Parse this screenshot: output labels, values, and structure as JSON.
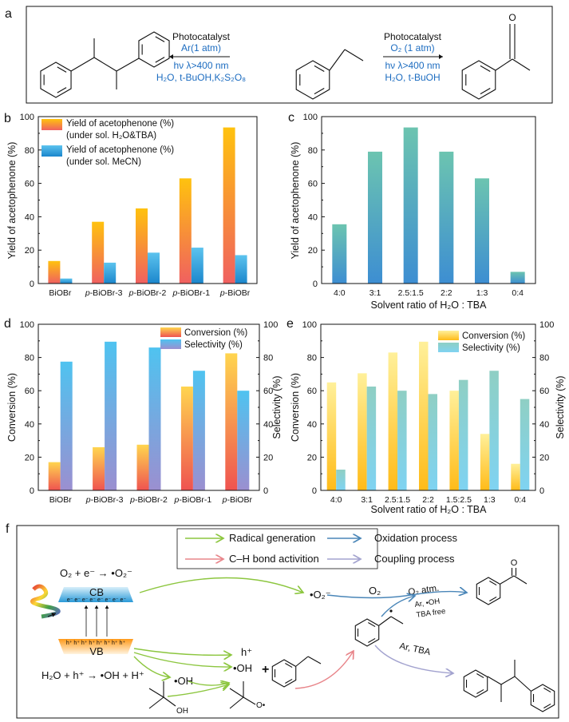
{
  "panel_labels": {
    "a": "a",
    "b": "b",
    "c": "c",
    "d": "d",
    "e": "e",
    "f": "f"
  },
  "scheme_a": {
    "left_conditions": [
      "Photocatalyst",
      "Ar(1 atm)",
      "hν λ>400 nm",
      "H₂O, t-BuOH,K₂S₂O₈"
    ],
    "right_conditions": [
      "Photocatalyst",
      "O₂ (1 atm)",
      "hν λ>400 nm",
      "H₂O, t-BuOH"
    ],
    "carbonyl_oxygen": "O",
    "condition_color": "#1c6cc0"
  },
  "chart_data": [
    {
      "panel": "b",
      "type": "bar",
      "categories": [
        "BiOBr",
        "p-BiOBr-3",
        "p-BiOBr-2",
        "p-BiOBr-1",
        "p-BiOBr"
      ],
      "series": [
        {
          "name": "Yield of acetophenone (%)",
          "name_line2": "(under sol. H₂O&TBA)",
          "values": [
            13.5,
            37,
            45,
            63,
            93.5
          ],
          "colors": [
            "#ffc20e",
            "#f06060"
          ]
        },
        {
          "name": "Yield of acetophenone (%)",
          "name_line2": "(under sol. MeCN)",
          "values": [
            3,
            12.5,
            18.5,
            21.5,
            17
          ],
          "colors": [
            "#5cc3ee",
            "#1b86cc"
          ]
        }
      ],
      "ylabel": "Yield of acetophenone (%)",
      "xlabel": "",
      "ylim": [
        0,
        100
      ],
      "yticks": [
        0,
        20,
        40,
        60,
        80,
        100
      ],
      "legend": "top-left",
      "grid": false
    },
    {
      "panel": "c",
      "type": "bar",
      "categories": [
        "4:0",
        "3:1",
        "2.5:1.5",
        "2:2",
        "1:3",
        "0:4"
      ],
      "series": [
        {
          "values": [
            35.5,
            79,
            93.5,
            79,
            63,
            7
          ],
          "colors": [
            "#6cc4b0",
            "#3d8ed2"
          ]
        }
      ],
      "ylabel": "Yield of acetophenone (%)",
      "xlabel": "Solvent ratio of H₂O : TBA",
      "ylim": [
        0,
        100
      ],
      "yticks": [
        0,
        20,
        40,
        60,
        80,
        100
      ],
      "grid": false
    },
    {
      "panel": "d",
      "type": "bar",
      "categories": [
        "BiOBr",
        "p-BiOBr-3",
        "p-BiOBr-2",
        "p-BiOBr-1",
        "p-BiOBr"
      ],
      "series": [
        {
          "name": "Conversion (%)",
          "axis": "left",
          "values": [
            17,
            26,
            27.5,
            62.5,
            82.5
          ],
          "colors": [
            "#ffd54f",
            "#ef5350"
          ]
        },
        {
          "name": "Selectivity (%)",
          "axis": "right",
          "values": [
            77.5,
            89.5,
            86,
            72,
            60
          ],
          "colors": [
            "#4fc3f0",
            "#9b8fd0"
          ]
        }
      ],
      "ylabel": "Conversion (%)",
      "y2label": "Selectivity (%)",
      "xlabel": "",
      "ylim": [
        0,
        100
      ],
      "y2lim": [
        0,
        100
      ],
      "yticks": [
        0,
        20,
        40,
        60,
        80,
        100
      ],
      "legend": "top-right",
      "grid": false
    },
    {
      "panel": "e",
      "type": "bar",
      "categories": [
        "4:0",
        "3:1",
        "2.5:1.5",
        "2:2",
        "1.5:2.5",
        "1:3",
        "0:4"
      ],
      "series": [
        {
          "name": "Conversion (%)",
          "axis": "left",
          "values": [
            65,
            70.5,
            83,
            89.5,
            60,
            34,
            16
          ],
          "colors": [
            "#fff09a",
            "#ffbb18"
          ]
        },
        {
          "name": "Selectivity (%)",
          "axis": "right",
          "values": [
            12.5,
            62.5,
            60,
            58,
            66.5,
            72,
            55
          ],
          "colors": [
            "#8fcfc4",
            "#7fd3f2"
          ]
        }
      ],
      "ylabel": "Conversion (%)",
      "y2label": "Selectivity (%)",
      "xlabel": "Solvent ratio of H₂O : TBA",
      "ylim": [
        0,
        100
      ],
      "y2lim": [
        0,
        100
      ],
      "yticks": [
        0,
        20,
        40,
        60,
        80,
        100
      ],
      "legend": "top-right",
      "grid": false
    }
  ],
  "mechanism_f": {
    "legend": [
      {
        "label": "Radical generation",
        "color": "#8cc63f"
      },
      {
        "label": "Oxidation process",
        "color": "#4a86b8"
      },
      {
        "label": "C–H bond activition",
        "color": "#e8858a"
      },
      {
        "label": "Coupling process",
        "color": "#a3a3cf"
      }
    ],
    "o2_reduction": "O₂ + e⁻ → •O₂⁻",
    "cb": "CB",
    "vb": "VB",
    "electrons": "e⁻ e⁻ e⁻ e⁻ e⁻ e⁻ e⁻ e⁻",
    "holes": "h⁺ h⁺ h⁺ h⁺ h⁺ h⁺ h⁺ h⁺",
    "water_oxidation": "H₂O + h⁺ → •OH + H⁺",
    "oh_radical_1": "•OH",
    "tbuoh_oh": "OH",
    "h_plus": "h⁺",
    "oh_radical_2": "•OH",
    "plus": "+",
    "alkoxy_o": "O•",
    "superoxide": "•O₂⁻",
    "o2": "O₂",
    "o2_atm": "O₂ atm.",
    "ar_oh": "Ar, •OH",
    "tba_free": "TBA free",
    "ar_tba": "Ar, TBA",
    "ketone_o": "O"
  }
}
